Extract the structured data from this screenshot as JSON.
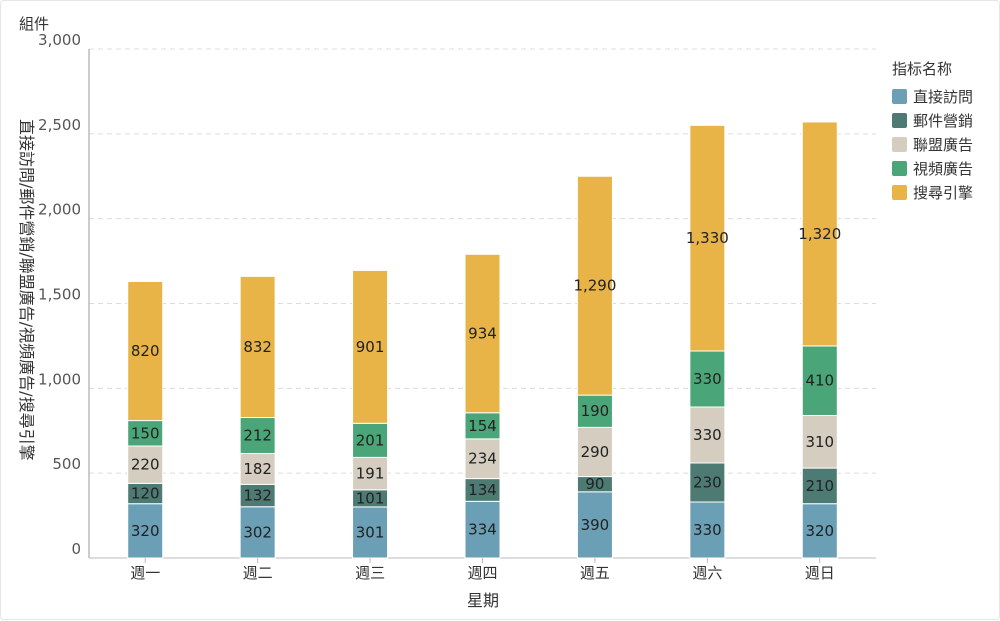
{
  "panel": {
    "title": "組件"
  },
  "chart_data": {
    "type": "bar",
    "stacked": true,
    "xlabel": "星期",
    "ylabel": "直接訪問/郵件營銷/聯盟廣告/視頻廣告/搜尋引擎",
    "categories": [
      "週一",
      "週二",
      "週三",
      "週四",
      "週五",
      "週六",
      "週日"
    ],
    "ylim": [
      0,
      3000
    ],
    "yticks": [
      0,
      500,
      1000,
      1500,
      2000,
      2500,
      3000
    ],
    "ytick_labels": [
      "0",
      "500",
      "1,000",
      "1,500",
      "2,000",
      "2,500",
      "3,000"
    ],
    "grid": true,
    "legend_title": "指标名称",
    "legend_position": "right",
    "series": [
      {
        "name": "直接訪問",
        "color": "#6a9fb5",
        "values": [
          320,
          302,
          301,
          334,
          390,
          330,
          320
        ],
        "labels": [
          "320",
          "302",
          "301",
          "334",
          "390",
          "330",
          "320"
        ]
      },
      {
        "name": "郵件營銷",
        "color": "#4d7a72",
        "values": [
          120,
          132,
          101,
          134,
          90,
          230,
          210
        ],
        "labels": [
          "120",
          "132",
          "101",
          "134",
          "90",
          "230",
          "210"
        ]
      },
      {
        "name": "聯盟廣告",
        "color": "#d4cdc0",
        "values": [
          220,
          182,
          191,
          234,
          290,
          330,
          310
        ],
        "labels": [
          "220",
          "182",
          "191",
          "234",
          "290",
          "330",
          "310"
        ]
      },
      {
        "name": "視頻廣告",
        "color": "#4aa678",
        "values": [
          150,
          212,
          201,
          154,
          190,
          330,
          410
        ],
        "labels": [
          "150",
          "212",
          "201",
          "154",
          "190",
          "330",
          "410"
        ]
      },
      {
        "name": "搜尋引擎",
        "color": "#e8b448",
        "values": [
          820,
          832,
          901,
          934,
          1290,
          1330,
          1320
        ],
        "labels": [
          "820",
          "832",
          "901",
          "934",
          "1,290",
          "1,330",
          "1,320"
        ]
      }
    ]
  }
}
